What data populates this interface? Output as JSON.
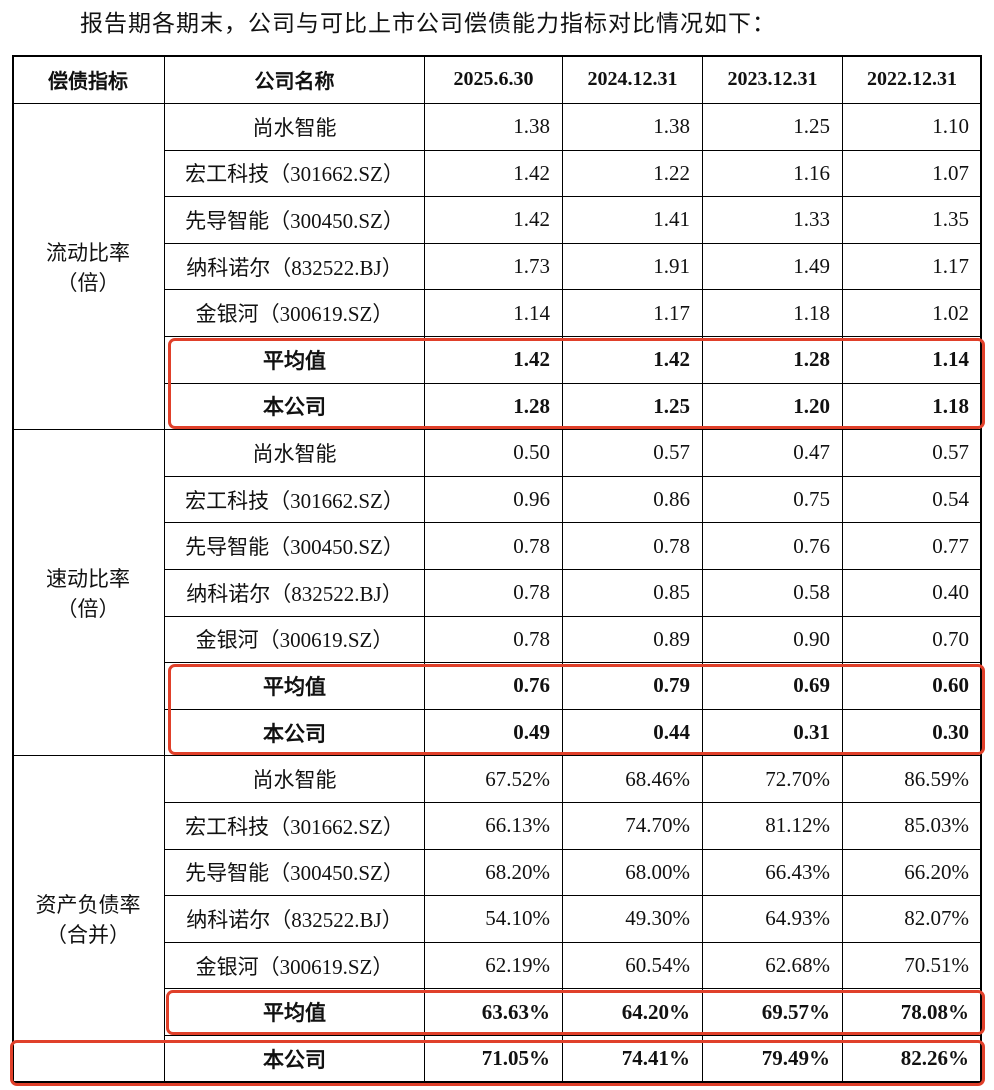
{
  "intro": "报告期各期末，公司与可比上市公司偿债能力指标对比情况如下：",
  "table": {
    "header": [
      "偿债指标",
      "公司名称",
      "2025.6.30",
      "2024.12.31",
      "2023.12.31",
      "2022.12.31"
    ],
    "groups": [
      {
        "label": [
          "流动比率",
          "（倍）"
        ],
        "rows": [
          [
            "尚水智能",
            "1.38",
            "1.38",
            "1.25",
            "1.10"
          ],
          [
            "宏工科技（301662.SZ）",
            "1.42",
            "1.22",
            "1.16",
            "1.07"
          ],
          [
            "先导智能（300450.SZ）",
            "1.42",
            "1.41",
            "1.33",
            "1.35"
          ],
          [
            "纳科诺尔（832522.BJ）",
            "1.73",
            "1.91",
            "1.49",
            "1.17"
          ],
          [
            "金银河（300619.SZ）",
            "1.14",
            "1.17",
            "1.18",
            "1.02"
          ],
          [
            "平均值",
            "1.42",
            "1.42",
            "1.28",
            "1.14"
          ],
          [
            "本公司",
            "1.28",
            "1.25",
            "1.20",
            "1.18"
          ]
        ]
      },
      {
        "label": [
          "速动比率",
          "（倍）"
        ],
        "rows": [
          [
            "尚水智能",
            "0.50",
            "0.57",
            "0.47",
            "0.57"
          ],
          [
            "宏工科技（301662.SZ）",
            "0.96",
            "0.86",
            "0.75",
            "0.54"
          ],
          [
            "先导智能（300450.SZ）",
            "0.78",
            "0.78",
            "0.76",
            "0.77"
          ],
          [
            "纳科诺尔（832522.BJ）",
            "0.78",
            "0.85",
            "0.58",
            "0.40"
          ],
          [
            "金银河（300619.SZ）",
            "0.78",
            "0.89",
            "0.90",
            "0.70"
          ],
          [
            "平均值",
            "0.76",
            "0.79",
            "0.69",
            "0.60"
          ],
          [
            "本公司",
            "0.49",
            "0.44",
            "0.31",
            "0.30"
          ]
        ]
      },
      {
        "label": [
          "资产负债率",
          "（合并）"
        ],
        "rows": [
          [
            "尚水智能",
            "67.52%",
            "68.46%",
            "72.70%",
            "86.59%"
          ],
          [
            "宏工科技（301662.SZ）",
            "66.13%",
            "74.70%",
            "81.12%",
            "85.03%"
          ],
          [
            "先导智能（300450.SZ）",
            "68.20%",
            "68.00%",
            "66.43%",
            "66.20%"
          ],
          [
            "纳科诺尔（832522.BJ）",
            "54.10%",
            "49.30%",
            "64.93%",
            "82.07%"
          ],
          [
            "金银河（300619.SZ）",
            "62.19%",
            "60.54%",
            "62.68%",
            "70.51%"
          ],
          [
            "平均值",
            "63.63%",
            "64.20%",
            "69.57%",
            "78.08%"
          ],
          [
            "本公司",
            "71.05%",
            "74.41%",
            "79.49%",
            "82.26%"
          ]
        ]
      }
    ]
  }
}
